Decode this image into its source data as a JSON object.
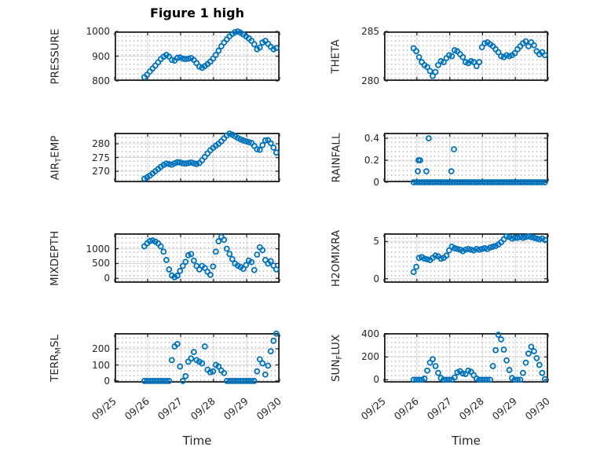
{
  "figure": {
    "title": "Figure 1 high",
    "marker_color": "#0072BD",
    "axis_color": "#1c1c1c",
    "tick_color": "#262626",
    "grid_color": "#d9d9d9"
  },
  "chart_data": {
    "type": "scatter",
    "title": "Figure 1 high",
    "xlabel": "Time",
    "layout": "4 rows x 2 columns, shared time axis",
    "marker": "open-circle",
    "xlim": [
      0,
      5
    ],
    "xticks": [
      {
        "v": 0,
        "label": "09/25"
      },
      {
        "v": 1,
        "label": "09/26"
      },
      {
        "v": 2,
        "label": "09/27"
      },
      {
        "v": 3,
        "label": "09/28"
      },
      {
        "v": 4,
        "label": "09/29"
      },
      {
        "v": 5,
        "label": "09/30"
      }
    ],
    "t": [
      0.9,
      0.983,
      1.067,
      1.15,
      1.233,
      1.317,
      1.4,
      1.483,
      1.567,
      1.65,
      1.733,
      1.817,
      1.9,
      1.983,
      2.067,
      2.15,
      2.233,
      2.317,
      2.4,
      2.483,
      2.567,
      2.65,
      2.733,
      2.817,
      2.9,
      2.983,
      3.067,
      3.15,
      3.233,
      3.317,
      3.4,
      3.483,
      3.567,
      3.65,
      3.733,
      3.817,
      3.9,
      3.983,
      4.067,
      4.15,
      4.233,
      4.317,
      4.4,
      4.483,
      4.567,
      4.65,
      4.733,
      4.817,
      4.9
    ],
    "subplots": [
      {
        "id": "pressure",
        "row": 0,
        "col": 0,
        "show_xticklabels": false,
        "ylabel": "PRESSURE",
        "ylabel_parts": [
          {
            "t": "PRESSURE"
          }
        ],
        "ylim": [
          800,
          1000
        ],
        "yticks": [
          {
            "v": 800,
            "label": "800"
          },
          {
            "v": 900,
            "label": "900"
          },
          {
            "v": 1000,
            "label": "1000"
          }
        ],
        "values": [
          815,
          825,
          838,
          850,
          862,
          875,
          888,
          898,
          905,
          898,
          885,
          882,
          893,
          895,
          890,
          888,
          890,
          892,
          885,
          872,
          858,
          853,
          860,
          868,
          878,
          890,
          905,
          922,
          940,
          955,
          968,
          980,
          990,
          997,
          1000,
          995,
          988,
          980,
          972,
          962,
          948,
          928,
          935,
          955,
          962,
          950,
          938,
          928,
          933
        ]
      },
      {
        "id": "theta",
        "row": 0,
        "col": 1,
        "show_xticklabels": false,
        "ylabel": "THETA",
        "ylabel_parts": [
          {
            "t": "THETA"
          }
        ],
        "ylim": [
          280,
          285
        ],
        "yticks": [
          {
            "v": 280,
            "label": "280"
          },
          {
            "v": 285,
            "label": "285"
          }
        ],
        "values": [
          283.3,
          283.0,
          282.4,
          281.9,
          281.6,
          281.4,
          281.0,
          280.5,
          280.9,
          281.6,
          282.0,
          281.9,
          282.3,
          282.6,
          282.5,
          283.1,
          283.0,
          282.7,
          282.4,
          281.9,
          281.8,
          282.0,
          281.9,
          281.5,
          281.9,
          283.4,
          283.8,
          283.9,
          283.7,
          283.5,
          283.2,
          282.9,
          282.5,
          282.4,
          282.6,
          282.5,
          282.6,
          282.8,
          283.2,
          283.5,
          283.8,
          284.0,
          283.5,
          283.9,
          283.6,
          283.0,
          282.7,
          282.9,
          282.6
        ]
      },
      {
        "id": "airtemp",
        "row": 1,
        "col": 0,
        "show_xticklabels": false,
        "ylabel": "AIR_TEMP",
        "ylabel_parts": [
          {
            "t": "AIR"
          },
          {
            "t": "T",
            "sub": true
          },
          {
            "t": "EMP"
          }
        ],
        "ylim": [
          266,
          284
        ],
        "yticks": [
          {
            "v": 270,
            "label": "270"
          },
          {
            "v": 275,
            "label": "275"
          },
          {
            "v": 280,
            "label": "280"
          }
        ],
        "values": [
          267.3,
          267.8,
          268.4,
          269.2,
          270.0,
          270.8,
          271.6,
          272.3,
          272.8,
          272.6,
          272.4,
          272.9,
          273.3,
          273.2,
          272.9,
          272.8,
          273.0,
          273.2,
          272.9,
          272.6,
          273.0,
          274.0,
          275.2,
          276.5,
          277.6,
          278.5,
          279.3,
          280.0,
          280.9,
          282.0,
          283.0,
          283.7,
          283.3,
          282.7,
          282.1,
          281.6,
          281.2,
          280.9,
          280.6,
          280.3,
          279.2,
          278.0,
          277.8,
          279.5,
          281.2,
          281.3,
          280.2,
          278.6,
          276.8
        ]
      },
      {
        "id": "rainfall",
        "row": 1,
        "col": 1,
        "show_xticklabels": false,
        "ylabel": "RAINFALL",
        "ylabel_parts": [
          {
            "t": "RAINFALL"
          }
        ],
        "ylim": [
          0,
          0.45
        ],
        "yticks": [
          {
            "v": 0,
            "label": "0"
          },
          {
            "v": 0.2,
            "label": "0.2"
          },
          {
            "v": 0.4,
            "label": "0.4"
          }
        ],
        "values": [
          0,
          0,
          0,
          0,
          0,
          0,
          0,
          0,
          0,
          0,
          0,
          0,
          0,
          0,
          0,
          0,
          0,
          0,
          0,
          0,
          0,
          0,
          0,
          0,
          0,
          0,
          0,
          0,
          0,
          0,
          0,
          0,
          0,
          0,
          0,
          0,
          0,
          0,
          0,
          0,
          0,
          0,
          0,
          0,
          0,
          0,
          0,
          0,
          0
        ],
        "extra_points": [
          [
            1.03,
            0.1
          ],
          [
            1.05,
            0.2
          ],
          [
            1.1,
            0.2
          ],
          [
            1.29,
            0.1
          ],
          [
            1.36,
            0.4
          ],
          [
            2.05,
            0.1
          ],
          [
            2.13,
            0.3
          ]
        ]
      },
      {
        "id": "mixdepth",
        "row": 2,
        "col": 0,
        "show_xticklabels": false,
        "ylabel": "MIXDEPTH",
        "ylabel_parts": [
          {
            "t": "MIXDEPTH"
          }
        ],
        "ylim": [
          -150,
          1520
        ],
        "yticks": [
          {
            "v": 0,
            "label": "0"
          },
          {
            "v": 500,
            "label": "500"
          },
          {
            "v": 1000,
            "label": "1000"
          }
        ],
        "values": [
          1080,
          1180,
          1260,
          1280,
          1240,
          1180,
          1080,
          900,
          620,
          300,
          100,
          40,
          90,
          250,
          420,
          560,
          780,
          820,
          600,
          420,
          300,
          420,
          350,
          220,
          120,
          400,
          900,
          1250,
          1400,
          1300,
          1000,
          820,
          650,
          500,
          430,
          380,
          320,
          450,
          600,
          550,
          280,
          800,
          1050,
          950,
          620,
          500,
          580,
          430,
          300
        ]
      },
      {
        "id": "h2omixra",
        "row": 2,
        "col": 1,
        "show_xticklabels": false,
        "ylabel": "H2OMIXRA",
        "ylabel_parts": [
          {
            "t": "H2OMIXRA"
          }
        ],
        "ylim": [
          -0.55,
          6.1
        ],
        "yticks": [
          {
            "v": 0,
            "label": "0"
          },
          {
            "v": 5,
            "label": "5"
          }
        ],
        "values": [
          0.9,
          1.6,
          2.8,
          2.9,
          2.7,
          2.6,
          2.5,
          2.8,
          3.1,
          3.0,
          2.7,
          2.8,
          3.1,
          3.8,
          4.3,
          4.1,
          4.0,
          3.9,
          3.7,
          3.9,
          4.0,
          3.9,
          3.8,
          4.0,
          3.9,
          4.0,
          4.1,
          4.0,
          4.2,
          4.3,
          4.4,
          4.6,
          4.9,
          5.3,
          5.7,
          5.6,
          5.4,
          5.5,
          5.5,
          5.6,
          5.5,
          5.6,
          5.7,
          5.6,
          5.5,
          5.4,
          5.3,
          5.4,
          5.2
        ]
      },
      {
        "id": "terrmsl",
        "row": 3,
        "col": 0,
        "show_xticklabels": true,
        "ylabel": "TERR_MSL",
        "ylabel_parts": [
          {
            "t": "TERR"
          },
          {
            "t": "M",
            "sub": true
          },
          {
            "t": "SL"
          }
        ],
        "ylim": [
          -10,
          298
        ],
        "yticks": [
          {
            "v": 0,
            "label": "0"
          },
          {
            "v": 100,
            "label": "100"
          },
          {
            "v": 200,
            "label": "200"
          }
        ],
        "values": [
          0,
          0,
          0,
          0,
          0,
          0,
          0,
          0,
          0,
          0,
          130,
          215,
          230,
          90,
          0,
          30,
          120,
          140,
          180,
          130,
          120,
          110,
          215,
          70,
          55,
          60,
          100,
          90,
          65,
          50,
          0,
          0,
          0,
          0,
          0,
          0,
          0,
          0,
          0,
          0,
          0,
          60,
          135,
          110,
          40,
          95,
          185,
          250,
          295
        ]
      },
      {
        "id": "sunflux",
        "row": 3,
        "col": 1,
        "show_xticklabels": true,
        "ylabel": "SUN_FLUX",
        "ylabel_parts": [
          {
            "t": "SUN"
          },
          {
            "t": "F",
            "sub": true
          },
          {
            "t": "LUX"
          }
        ],
        "ylim": [
          -25,
          410
        ],
        "yticks": [
          {
            "v": 0,
            "label": "0"
          },
          {
            "v": 200,
            "label": "200"
          },
          {
            "v": 400,
            "label": "400"
          }
        ],
        "values": [
          0,
          0,
          0,
          0,
          10,
          80,
          150,
          180,
          120,
          60,
          15,
          0,
          0,
          0,
          0,
          20,
          65,
          75,
          55,
          50,
          80,
          70,
          40,
          10,
          0,
          0,
          0,
          0,
          0,
          120,
          260,
          395,
          355,
          265,
          170,
          85,
          15,
          0,
          0,
          0,
          60,
          150,
          230,
          290,
          250,
          190,
          130,
          60,
          5
        ]
      }
    ]
  }
}
